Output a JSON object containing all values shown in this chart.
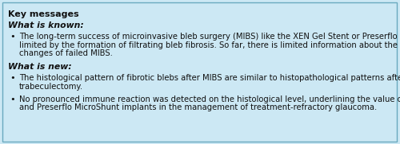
{
  "background_color": "#cce8f4",
  "border_color": "#6aaabf",
  "title": "Key messages",
  "title_fontsize": 8.0,
  "section1_label": "What is known:",
  "section2_label": "What is new:",
  "section_fontsize": 7.8,
  "bullet1_line1": "The long-term success of microinvasive bleb surgery (MIBS) like the XEN Gel Stent or Preserflo MicroShunt is",
  "bullet1_line2": "limited by the formation of filtrating bleb fibrosis. So far, there is limited information about the histopathological",
  "bullet1_line3": "changes of failed MIBS.",
  "bullet2_line1": "The histological pattern of fibrotic blebs after MIBS are similar to histopathological patterns after failed",
  "bullet2_line2": "trabeculectomy.",
  "bullet3_line1": "No pronounced immune reaction was detected on the histological level, underlining the value of the XEN Gel Stent",
  "bullet3_line2": "and Preserflo MicroShunt implants in the management of treatment-refractory glaucoma.",
  "text_color": "#111111",
  "text_fontsize": 7.2,
  "bullet_char": "•",
  "figsize": [
    5.0,
    1.81
  ],
  "dpi": 100
}
